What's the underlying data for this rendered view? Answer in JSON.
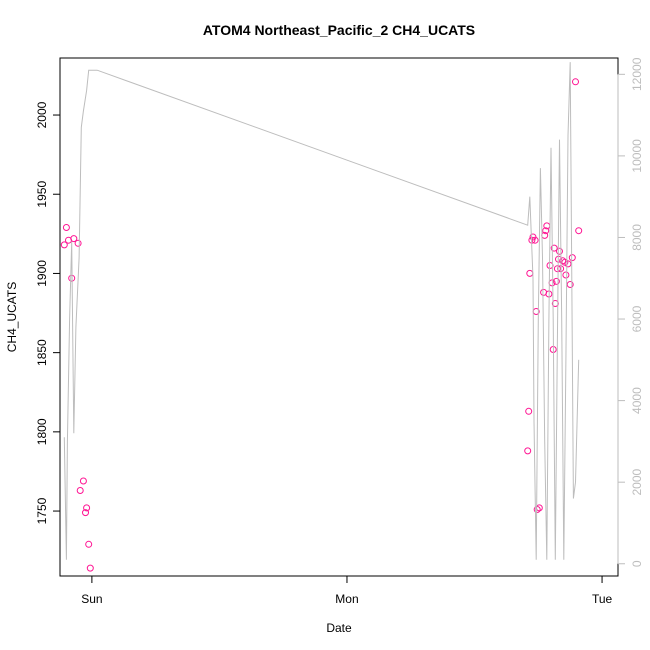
{
  "chart_data": {
    "type": "scatter",
    "title": "ATOM4 Northeast_Pacific_2 CH4_UCATS",
    "xlabel": "Date",
    "ylabel": "CH4_UCATS",
    "x_ticks": [
      {
        "label": "Sun",
        "value": 0
      },
      {
        "label": "Mon",
        "value": 24
      },
      {
        "label": "Tue",
        "value": 48
      }
    ],
    "xlim": [
      -3,
      49.5
    ],
    "ylim": [
      1709,
      2036
    ],
    "y_ticks": [
      1750,
      1800,
      1850,
      1900,
      1950,
      2000
    ],
    "y2_ticks": [
      0,
      2000,
      4000,
      6000,
      8000,
      10000,
      12000
    ],
    "y2lim": [
      -300,
      12400
    ],
    "series": [
      {
        "axis": "left",
        "color": "#ff1493",
        "marker": "open-circle",
        "points": [
          [
            -2.6,
            1918
          ],
          [
            -2.4,
            1929
          ],
          [
            -2.2,
            1921
          ],
          [
            -1.9,
            1897
          ],
          [
            -1.7,
            1922
          ],
          [
            -1.3,
            1919
          ],
          [
            -1.1,
            1763
          ],
          [
            -0.8,
            1769
          ],
          [
            -0.6,
            1749
          ],
          [
            -0.5,
            1752
          ],
          [
            -0.3,
            1729
          ],
          [
            -0.15,
            1714
          ],
          [
            41.0,
            1788
          ],
          [
            41.1,
            1813
          ],
          [
            41.2,
            1900
          ],
          [
            41.4,
            1921
          ],
          [
            41.5,
            1923
          ],
          [
            41.7,
            1921
          ],
          [
            41.8,
            1876
          ],
          [
            41.9,
            1751
          ],
          [
            42.1,
            1752
          ],
          [
            42.5,
            1888
          ],
          [
            42.6,
            1924
          ],
          [
            42.7,
            1927
          ],
          [
            42.8,
            1930
          ],
          [
            43.0,
            1887
          ],
          [
            43.1,
            1905
          ],
          [
            43.3,
            1894
          ],
          [
            43.4,
            1852
          ],
          [
            43.5,
            1916
          ],
          [
            43.6,
            1881
          ],
          [
            43.7,
            1895
          ],
          [
            43.8,
            1903
          ],
          [
            43.9,
            1909
          ],
          [
            44.0,
            1914
          ],
          [
            44.1,
            1903
          ],
          [
            44.3,
            1908
          ],
          [
            44.5,
            1907
          ],
          [
            44.6,
            1899
          ],
          [
            44.8,
            1906
          ],
          [
            45.0,
            1893
          ],
          [
            45.2,
            1910
          ],
          [
            45.5,
            2021
          ],
          [
            45.8,
            1927
          ]
        ]
      },
      {
        "axis": "right",
        "color": "#bdbdbd",
        "marker": "line",
        "points": [
          [
            -2.6,
            3100
          ],
          [
            -2.4,
            100
          ],
          [
            -2.3,
            3000
          ],
          [
            -2.1,
            6000
          ],
          [
            -1.9,
            7900
          ],
          [
            -1.7,
            3200
          ],
          [
            -1.5,
            5800
          ],
          [
            -1.2,
            7500
          ],
          [
            -1.0,
            10700
          ],
          [
            -0.8,
            11100
          ],
          [
            -0.5,
            11600
          ],
          [
            -0.3,
            12100
          ],
          [
            0.5,
            12100
          ],
          [
            41.0,
            8300
          ],
          [
            41.2,
            9000
          ],
          [
            41.5,
            7000
          ],
          [
            41.6,
            3500
          ],
          [
            41.8,
            100
          ],
          [
            42.0,
            6000
          ],
          [
            42.2,
            9700
          ],
          [
            42.4,
            7500
          ],
          [
            42.6,
            3000
          ],
          [
            42.8,
            100
          ],
          [
            43.0,
            6000
          ],
          [
            43.2,
            10200
          ],
          [
            43.4,
            6000
          ],
          [
            43.6,
            100
          ],
          [
            43.8,
            5500
          ],
          [
            44.0,
            10400
          ],
          [
            44.2,
            6000
          ],
          [
            44.4,
            100
          ],
          [
            44.6,
            5000
          ],
          [
            44.8,
            10500
          ],
          [
            45.0,
            12300
          ],
          [
            45.3,
            1600
          ],
          [
            45.5,
            2000
          ],
          [
            45.8,
            5000
          ]
        ]
      }
    ]
  }
}
